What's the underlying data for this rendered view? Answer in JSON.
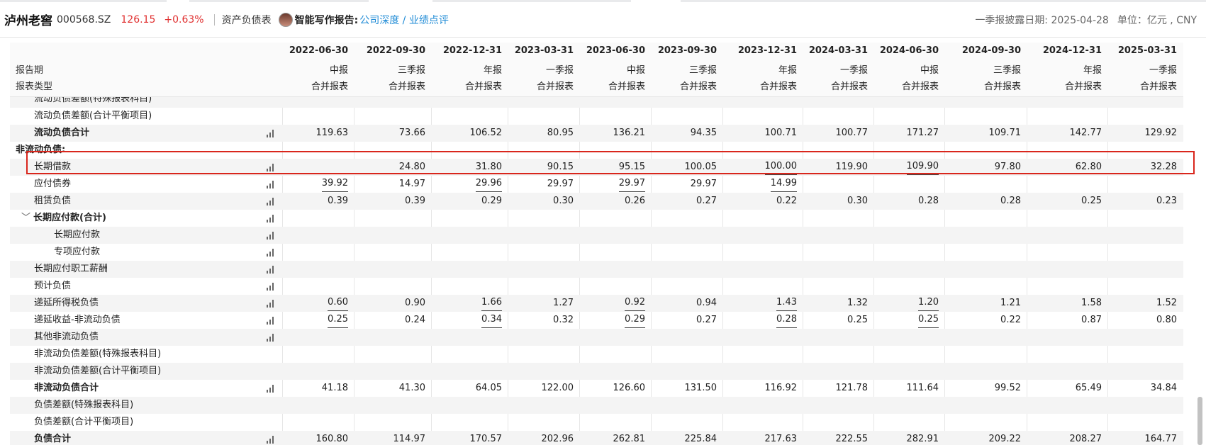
{
  "header": {
    "stock_name": "泸州老窖",
    "stock_code": "000568.SZ",
    "price": "126.15",
    "change": "+0.63%",
    "report_name": "资产负债表",
    "ai_label": "智能写作报告:",
    "ai_links": "公司深度 / 业绩点评",
    "disclosure": "一季报披露日期: 2025-04-28",
    "unit": "单位：亿元 , CNY"
  },
  "table": {
    "label_period": "报告期",
    "label_type": "报表类型",
    "columns": [
      {
        "date": "2022-06-30",
        "type": "中报",
        "kind": "合并报表"
      },
      {
        "date": "2022-09-30",
        "type": "三季报",
        "kind": "合并报表"
      },
      {
        "date": "2022-12-31",
        "type": "年报",
        "kind": "合并报表"
      },
      {
        "date": "2023-03-31",
        "type": "一季报",
        "kind": "合并报表"
      },
      {
        "date": "2023-06-30",
        "type": "中报",
        "kind": "合并报表"
      },
      {
        "date": "2023-09-30",
        "type": "三季报",
        "kind": "合并报表"
      },
      {
        "date": "2023-12-31",
        "type": "年报",
        "kind": "合并报表"
      },
      {
        "date": "2024-03-31",
        "type": "一季报",
        "kind": "合并报表"
      },
      {
        "date": "2024-06-30",
        "type": "中报",
        "kind": "合并报表"
      },
      {
        "date": "2024-09-30",
        "type": "三季报",
        "kind": "合并报表"
      },
      {
        "date": "2024-12-31",
        "type": "年报",
        "kind": "合并报表"
      },
      {
        "date": "2025-03-31",
        "type": "一季报",
        "kind": "合并报表"
      }
    ],
    "rows": [
      {
        "name": "流动负债差额(特殊报表科目)",
        "indent": 1,
        "bold": false,
        "chart": false,
        "values": [
          "",
          "",
          "",
          "",
          "",
          "",
          "",
          "",
          "",
          "",
          "",
          ""
        ]
      },
      {
        "name": "流动负债差额(合计平衡项目)",
        "indent": 1,
        "bold": false,
        "chart": false,
        "values": [
          "",
          "",
          "",
          "",
          "",
          "",
          "",
          "",
          "",
          "",
          "",
          ""
        ]
      },
      {
        "name": "流动负债合计",
        "indent": 1,
        "bold": true,
        "chart": true,
        "values": [
          "119.63",
          "73.66",
          "106.52",
          "80.95",
          "136.21",
          "94.35",
          "100.71",
          "100.77",
          "171.27",
          "109.71",
          "142.77",
          "129.92"
        ]
      },
      {
        "name": "非流动负债:",
        "indent": 0,
        "bold": true,
        "chart": false,
        "values": [
          "",
          "",
          "",
          "",
          "",
          "",
          "",
          "",
          "",
          "",
          "",
          ""
        ]
      },
      {
        "name": "长期借款",
        "indent": 1,
        "bold": false,
        "chart": true,
        "values": [
          "",
          "24.80",
          "31.80",
          "90.15",
          "95.15",
          "100.05",
          "100.00",
          "119.90",
          "109.90",
          "97.80",
          "62.80",
          "32.28"
        ],
        "underline": [
          6,
          8
        ]
      },
      {
        "name": "应付债券",
        "indent": 1,
        "bold": false,
        "chart": true,
        "values": [
          "39.92",
          "14.97",
          "29.96",
          "29.97",
          "29.97",
          "29.97",
          "14.99",
          "",
          "",
          "",
          "",
          ""
        ],
        "underline": [
          0,
          2,
          4,
          6
        ]
      },
      {
        "name": "租赁负债",
        "indent": 1,
        "bold": false,
        "chart": true,
        "values": [
          "0.39",
          "0.39",
          "0.29",
          "0.30",
          "0.26",
          "0.27",
          "0.22",
          "0.30",
          "0.28",
          "0.28",
          "0.25",
          "0.23"
        ]
      },
      {
        "name": "长期应付款(合计)",
        "indent": 1,
        "bold": true,
        "chart": true,
        "caret": "﹀",
        "values": [
          "",
          "",
          "",
          "",
          "",
          "",
          "",
          "",
          "",
          "",
          "",
          ""
        ]
      },
      {
        "name": "长期应付款",
        "indent": 2,
        "bold": false,
        "chart": true,
        "values": [
          "",
          "",
          "",
          "",
          "",
          "",
          "",
          "",
          "",
          "",
          "",
          ""
        ]
      },
      {
        "name": "专项应付款",
        "indent": 2,
        "bold": false,
        "chart": true,
        "values": [
          "",
          "",
          "",
          "",
          "",
          "",
          "",
          "",
          "",
          "",
          "",
          ""
        ]
      },
      {
        "name": "长期应付职工薪酬",
        "indent": 1,
        "bold": false,
        "chart": true,
        "values": [
          "",
          "",
          "",
          "",
          "",
          "",
          "",
          "",
          "",
          "",
          "",
          ""
        ]
      },
      {
        "name": "预计负债",
        "indent": 1,
        "bold": false,
        "chart": true,
        "values": [
          "",
          "",
          "",
          "",
          "",
          "",
          "",
          "",
          "",
          "",
          "",
          ""
        ]
      },
      {
        "name": "递延所得税负债",
        "indent": 1,
        "bold": false,
        "chart": true,
        "values": [
          "0.60",
          "0.90",
          "1.66",
          "1.27",
          "0.92",
          "0.94",
          "1.43",
          "1.32",
          "1.20",
          "1.21",
          "1.58",
          "1.52"
        ],
        "underline": [
          0,
          2,
          4,
          6,
          8
        ]
      },
      {
        "name": "递延收益-非流动负债",
        "indent": 1,
        "bold": false,
        "chart": true,
        "values": [
          "0.25",
          "0.24",
          "0.34",
          "0.32",
          "0.29",
          "0.27",
          "0.28",
          "0.25",
          "0.25",
          "0.22",
          "0.87",
          "0.80"
        ],
        "underline": [
          0,
          2,
          4,
          6,
          8
        ]
      },
      {
        "name": "其他非流动负债",
        "indent": 1,
        "bold": false,
        "chart": true,
        "values": [
          "",
          "",
          "",
          "",
          "",
          "",
          "",
          "",
          "",
          "",
          "",
          ""
        ]
      },
      {
        "name": "非流动负债差额(特殊报表科目)",
        "indent": 1,
        "bold": false,
        "chart": false,
        "values": [
          "",
          "",
          "",
          "",
          "",
          "",
          "",
          "",
          "",
          "",
          "",
          ""
        ]
      },
      {
        "name": "非流动负债差额(合计平衡项目)",
        "indent": 1,
        "bold": false,
        "chart": false,
        "values": [
          "",
          "",
          "",
          "",
          "",
          "",
          "",
          "",
          "",
          "",
          "",
          ""
        ]
      },
      {
        "name": "非流动负债合计",
        "indent": 1,
        "bold": true,
        "chart": true,
        "values": [
          "41.18",
          "41.30",
          "64.05",
          "122.00",
          "126.60",
          "131.50",
          "116.92",
          "121.78",
          "111.64",
          "99.52",
          "65.49",
          "34.84"
        ]
      },
      {
        "name": "负债差额(特殊报表科目)",
        "indent": 1,
        "bold": false,
        "chart": false,
        "values": [
          "",
          "",
          "",
          "",
          "",
          "",
          "",
          "",
          "",
          "",
          "",
          ""
        ]
      },
      {
        "name": "负债差额(合计平衡项目)",
        "indent": 1,
        "bold": false,
        "chart": false,
        "values": [
          "",
          "",
          "",
          "",
          "",
          "",
          "",
          "",
          "",
          "",
          "",
          ""
        ]
      },
      {
        "name": "负债合计",
        "indent": 1,
        "bold": true,
        "chart": true,
        "values": [
          "160.80",
          "114.97",
          "170.57",
          "202.96",
          "262.81",
          "225.84",
          "217.63",
          "222.55",
          "282.91",
          "209.22",
          "208.27",
          "164.77"
        ]
      }
    ]
  },
  "colors": {
    "up": "#e03030",
    "link": "#1f8bd6",
    "highlight": "#d9261c"
  }
}
